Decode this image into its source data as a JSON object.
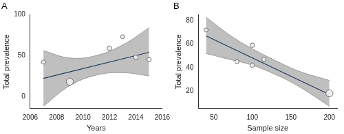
{
  "chart_data": [
    {
      "type": "scatter",
      "title": "A",
      "x_label": "Years",
      "y_label": "Total prevalence",
      "x": [
        2007,
        2009,
        2012,
        2013,
        2014,
        2015
      ],
      "values": [
        42,
        18,
        59,
        73,
        48,
        45
      ],
      "weights": [
        1,
        3,
        1.2,
        1,
        1.2,
        1.2
      ],
      "fit": {
        "x": [
          2007,
          2015
        ],
        "y": [
          22,
          54
        ]
      },
      "band": {
        "x": [
          2007,
          2009,
          2011,
          2013,
          2015
        ],
        "lower": [
          -12,
          13,
          26,
          29,
          25
        ],
        "upper": [
          56,
          47,
          50,
          63,
          84
        ]
      },
      "color": "#1f3b5a",
      "xlim": [
        2006,
        2016
      ],
      "xticks": [
        2006,
        2008,
        2010,
        2012,
        2014,
        2016
      ],
      "ylim": [
        -15,
        100
      ],
      "yticks": [
        0,
        50,
        100
      ],
      "grid": false
    },
    {
      "type": "scatter",
      "title": "B",
      "x_label": "Sample size",
      "y_label": "Total prevalence",
      "x": [
        40,
        80,
        100,
        100,
        115,
        200
      ],
      "values": [
        72,
        45,
        59,
        42,
        47,
        18
      ],
      "weights": [
        1,
        1,
        1.2,
        1.2,
        1,
        3
      ],
      "fit": {
        "x": [
          40,
          200
        ],
        "y": [
          67,
          17
        ]
      },
      "band": {
        "x": [
          40,
          70,
          100,
          130,
          160,
          200
        ],
        "lower": [
          52,
          47,
          42,
          34,
          24,
          7
        ],
        "upper": [
          83,
          68,
          56,
          46,
          37,
          29
        ]
      },
      "color": "#1f3b5a",
      "xlim": [
        30,
        210
      ],
      "xticks": [
        50,
        100,
        150,
        200
      ],
      "ylim": [
        5,
        85
      ],
      "yticks": [
        20,
        40,
        60,
        80
      ],
      "grid": false
    }
  ]
}
